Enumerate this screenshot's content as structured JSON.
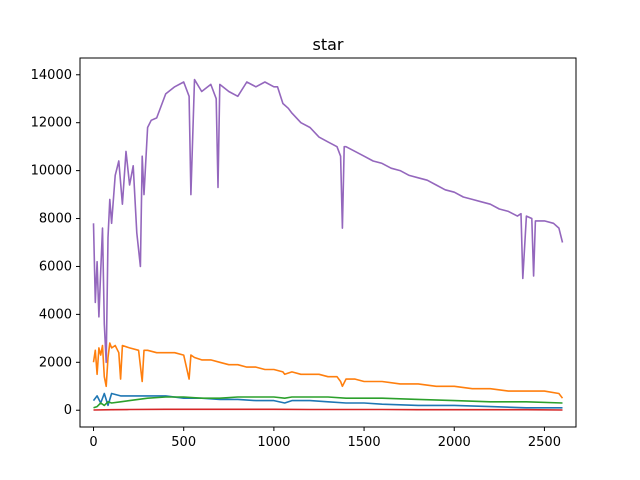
{
  "chart_data": {
    "type": "line",
    "title": "star",
    "xlabel": "",
    "ylabel": "",
    "xlim": [
      -75,
      2675
    ],
    "ylim": [
      -700,
      14700
    ],
    "x_ticks": [
      0,
      500,
      1000,
      1500,
      2000,
      2500
    ],
    "y_ticks": [
      0,
      2000,
      4000,
      6000,
      8000,
      10000,
      12000,
      14000
    ],
    "grid": false,
    "legend": "none",
    "series": [
      {
        "color": "#9467bd",
        "x": [
          0,
          10,
          20,
          30,
          40,
          50,
          60,
          70,
          80,
          90,
          100,
          120,
          140,
          160,
          180,
          200,
          220,
          240,
          260,
          270,
          280,
          300,
          320,
          350,
          400,
          450,
          500,
          530,
          540,
          560,
          600,
          650,
          680,
          690,
          700,
          750,
          800,
          850,
          900,
          950,
          1000,
          1020,
          1050,
          1080,
          1100,
          1150,
          1200,
          1250,
          1300,
          1350,
          1370,
          1380,
          1390,
          1400,
          1450,
          1500,
          1550,
          1600,
          1650,
          1700,
          1750,
          1800,
          1850,
          1900,
          1950,
          2000,
          2050,
          2100,
          2150,
          2200,
          2250,
          2300,
          2350,
          2370,
          2380,
          2400,
          2430,
          2440,
          2450,
          2500,
          2550,
          2580,
          2600
        ],
        "y": [
          7800,
          4500,
          6200,
          3900,
          5800,
          7600,
          3600,
          2000,
          7200,
          8800,
          7800,
          9800,
          10400,
          8600,
          10800,
          9400,
          10200,
          7400,
          6000,
          10600,
          9000,
          11800,
          12100,
          12200,
          13200,
          13500,
          13700,
          13100,
          9000,
          13800,
          13300,
          13600,
          13000,
          9300,
          13600,
          13300,
          13100,
          13700,
          13500,
          13700,
          13500,
          13500,
          12800,
          12600,
          12400,
          12000,
          11800,
          11400,
          11200,
          11000,
          10600,
          7600,
          11000,
          11000,
          10800,
          10600,
          10400,
          10300,
          10100,
          10000,
          9800,
          9700,
          9600,
          9400,
          9200,
          9100,
          8900,
          8800,
          8700,
          8600,
          8400,
          8300,
          8100,
          8200,
          5500,
          8100,
          8000,
          5600,
          7900,
          7900,
          7800,
          7600,
          7000
        ]
      },
      {
        "color": "#ff7f0e",
        "x": [
          0,
          10,
          20,
          30,
          40,
          50,
          60,
          70,
          80,
          90,
          100,
          120,
          140,
          150,
          160,
          200,
          250,
          270,
          280,
          300,
          350,
          400,
          450,
          500,
          530,
          540,
          560,
          600,
          650,
          700,
          750,
          800,
          850,
          900,
          950,
          1000,
          1050,
          1060,
          1100,
          1150,
          1200,
          1250,
          1300,
          1350,
          1370,
          1380,
          1400,
          1450,
          1500,
          1600,
          1700,
          1800,
          1900,
          2000,
          2100,
          2200,
          2300,
          2400,
          2500,
          2580,
          2600
        ],
        "y": [
          2000,
          2500,
          1500,
          2600,
          2300,
          2700,
          1400,
          1000,
          2200,
          2800,
          2600,
          2700,
          2400,
          1300,
          2700,
          2600,
          2500,
          1200,
          2500,
          2500,
          2400,
          2400,
          2400,
          2300,
          1300,
          2300,
          2200,
          2100,
          2100,
          2000,
          1900,
          1900,
          1800,
          1800,
          1700,
          1700,
          1600,
          1500,
          1600,
          1500,
          1500,
          1500,
          1400,
          1400,
          1200,
          1000,
          1300,
          1300,
          1200,
          1200,
          1100,
          1100,
          1000,
          1000,
          900,
          900,
          800,
          800,
          800,
          700,
          500
        ]
      },
      {
        "color": "#1f77b4",
        "x": [
          0,
          20,
          40,
          60,
          80,
          100,
          150,
          200,
          300,
          400,
          500,
          600,
          700,
          800,
          900,
          1000,
          1060,
          1100,
          1200,
          1300,
          1400,
          1500,
          1600,
          1800,
          2000,
          2200,
          2400,
          2600
        ],
        "y": [
          400,
          600,
          300,
          700,
          200,
          700,
          600,
          600,
          600,
          600,
          500,
          500,
          450,
          450,
          400,
          400,
          300,
          400,
          400,
          350,
          300,
          300,
          250,
          200,
          200,
          150,
          100,
          100
        ]
      },
      {
        "color": "#2ca02c",
        "x": [
          0,
          20,
          40,
          60,
          80,
          100,
          150,
          200,
          300,
          400,
          500,
          600,
          700,
          800,
          900,
          1000,
          1060,
          1100,
          1200,
          1300,
          1400,
          1500,
          1600,
          1800,
          2000,
          2200,
          2400,
          2600
        ],
        "y": [
          100,
          150,
          300,
          200,
          350,
          300,
          350,
          400,
          500,
          550,
          550,
          500,
          500,
          550,
          550,
          550,
          500,
          550,
          550,
          550,
          500,
          500,
          500,
          450,
          400,
          350,
          350,
          300
        ]
      },
      {
        "color": "#d62728",
        "x": [
          0,
          100,
          200,
          400,
          600,
          800,
          1000,
          1200,
          1400,
          1600,
          1800,
          2000,
          2200,
          2400,
          2600
        ],
        "y": [
          10,
          20,
          30,
          40,
          40,
          40,
          40,
          30,
          30,
          30,
          20,
          20,
          20,
          20,
          10
        ]
      }
    ]
  }
}
